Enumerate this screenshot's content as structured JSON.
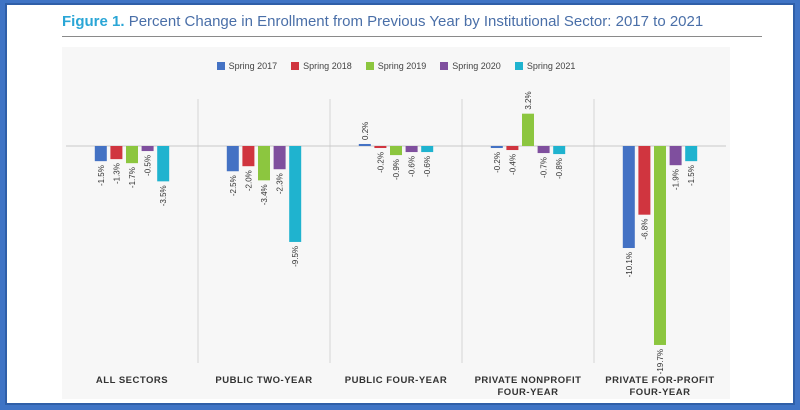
{
  "figure": {
    "label": "Figure 1.",
    "title": "Percent Change in Enrollment from Previous Year by Institutional Sector: 2017 to 2021"
  },
  "chart_data": {
    "type": "bar",
    "title": "Percent Change in Enrollment from Previous Year by Institutional Sector: 2017 to 2021",
    "xlabel": "",
    "ylabel": "",
    "unit": "%",
    "ylim": [
      -22,
      5
    ],
    "grid": false,
    "legend_position": "top-center",
    "categories": [
      [
        "ALL SECTORS"
      ],
      [
        "PUBLIC TWO-YEAR"
      ],
      [
        "PUBLIC FOUR-YEAR"
      ],
      [
        "PRIVATE NONPROFIT",
        "FOUR-YEAR"
      ],
      [
        "PRIVATE FOR-PROFIT",
        "FOUR-YEAR"
      ]
    ],
    "series": [
      {
        "name": "Spring 2017",
        "color": "#4472c4",
        "values": [
          -1.5,
          -2.5,
          0.2,
          -0.2,
          -10.1
        ]
      },
      {
        "name": "Spring 2018",
        "color": "#d0353f",
        "values": [
          -1.3,
          -2.0,
          -0.2,
          -0.4,
          -6.8
        ]
      },
      {
        "name": "Spring 2019",
        "color": "#8cc63f",
        "values": [
          -1.7,
          -3.4,
          -0.9,
          3.2,
          -19.7
        ]
      },
      {
        "name": "Spring 2020",
        "color": "#7f4f9e",
        "values": [
          -0.5,
          -2.3,
          -0.6,
          -0.7,
          -1.9
        ]
      },
      {
        "name": "Spring 2021",
        "color": "#1fb3cf",
        "values": [
          -3.5,
          -9.5,
          -0.6,
          -0.8,
          -1.5
        ]
      }
    ]
  }
}
